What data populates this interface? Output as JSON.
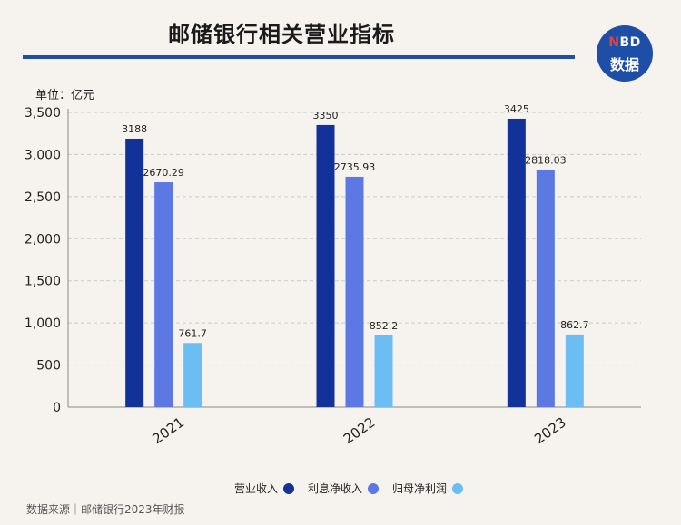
{
  "title": "邮储银行相关营业指标",
  "logo": {
    "n": "N",
    "bd": "BD",
    "bottom": "数据"
  },
  "unit": "单位：亿元",
  "source": "数据来源｜邮储银行2023年财报",
  "colors": {
    "rule": "#1e4ea8",
    "s1": "#12329a",
    "s2": "#5b78e3",
    "s3": "#6bbdf3"
  },
  "chart_data": {
    "type": "bar",
    "categories": [
      "2021",
      "2022",
      "2023"
    ],
    "series": [
      {
        "name": "营业收入",
        "values": [
          3188,
          3350,
          3425
        ],
        "labels": [
          "3188",
          "3350",
          "3425"
        ],
        "color": "#12329a"
      },
      {
        "name": "利息净收入",
        "values": [
          2670.29,
          2735.93,
          2818.03
        ],
        "labels": [
          "2670.29",
          "2735.93",
          "2818.03"
        ],
        "color": "#5b78e3"
      },
      {
        "name": "归母净利润",
        "values": [
          761.7,
          852.2,
          862.7
        ],
        "labels": [
          "761.7",
          "852.2",
          "862.7"
        ],
        "color": "#6bbdf3"
      }
    ],
    "ylim": [
      0,
      3500
    ],
    "yticks": [
      0,
      500,
      1000,
      1500,
      2000,
      2500,
      3000,
      3500
    ],
    "ytick_labels": [
      "0",
      "500",
      "1,000",
      "1,500",
      "2,000",
      "2,500",
      "3,000",
      "3,500"
    ],
    "grid": true,
    "legend_position": "bottom"
  }
}
